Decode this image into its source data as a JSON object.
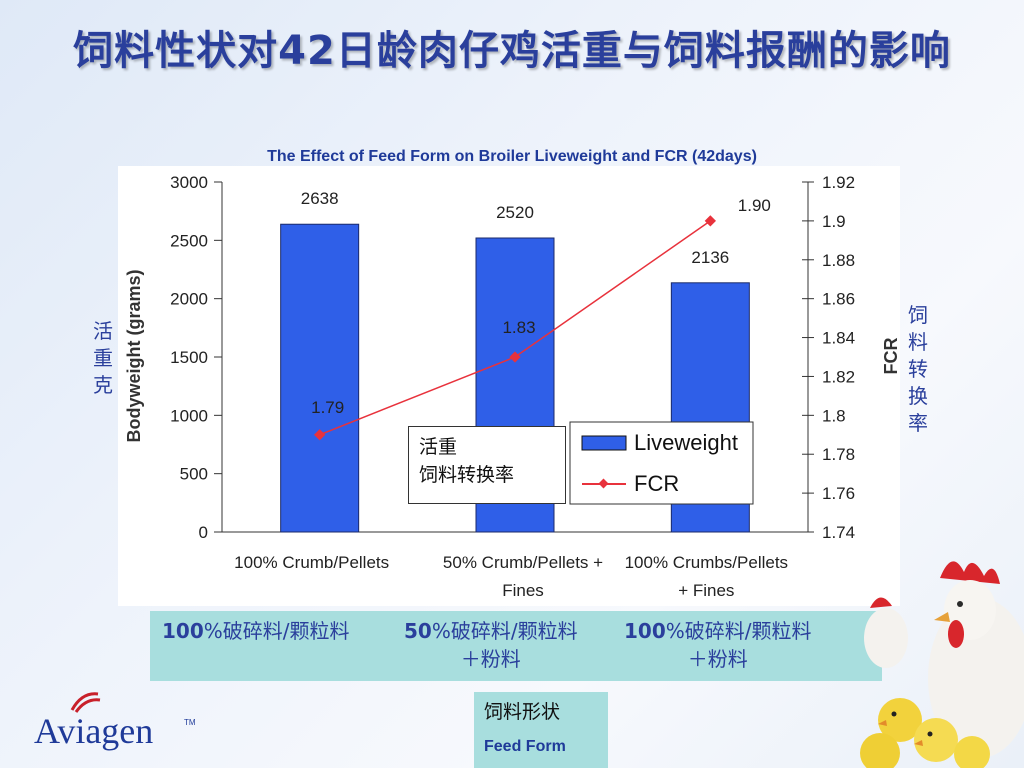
{
  "title_zh": "饲料性状对42日龄肉仔鸡活重与饲料报酬的影响",
  "title_en": "The Effect of Feed Form on Broiler Liveweight and FCR (42days)",
  "labels_zh": {
    "left_axis": "活重克",
    "right_axis": "饲料转换率",
    "legend_liveweight": "活重",
    "legend_fcr": "饲料转换率"
  },
  "categories_zh": [
    {
      "num": "100",
      "text": "%破碎料/颗粒料",
      "line2": ""
    },
    {
      "num": "50",
      "text": "%破碎料/颗粒料",
      "line2": "＋粉料"
    },
    {
      "num": "100",
      "text": "%破碎料/颗粒料",
      "line2": "＋粉料"
    }
  ],
  "feed_form": {
    "zh": "饲料形状",
    "en": "Feed Form"
  },
  "logo": {
    "text": "Aviagen",
    "tm": "TM"
  },
  "colors": {
    "bar": "#2f5fe8",
    "line": "#e8323c",
    "title": "#2a3f9c",
    "band": "#a8dede"
  },
  "chart_data": {
    "type": "bar",
    "categories": [
      [
        "100% Crumb/Pellets"
      ],
      [
        "50% Crumb/Pellets +",
        "Fines"
      ],
      [
        "100% Crumbs/Pellets",
        "+ Fines"
      ]
    ],
    "series": [
      {
        "name": "Liveweight",
        "type": "bar",
        "axis": "left",
        "values": [
          2638,
          2520,
          2136
        ],
        "labels": [
          "2638",
          "2520",
          "2136"
        ]
      },
      {
        "name": "FCR",
        "type": "line",
        "axis": "right",
        "values": [
          1.79,
          1.83,
          1.9
        ],
        "labels": [
          "1.79",
          "1.83",
          "1.90"
        ]
      }
    ],
    "ylabel": "Bodyweight (grams)",
    "ylabel_right": "FCR",
    "ylim": [
      0,
      3000
    ],
    "yticks": [
      "0",
      "500",
      "1000",
      "1500",
      "2000",
      "2500",
      "3000"
    ],
    "ylim_right": [
      1.74,
      1.92
    ],
    "yticks_right": [
      "1.74",
      "1.76",
      "1.78",
      "1.8",
      "1.82",
      "1.84",
      "1.86",
      "1.88",
      "1.9",
      "1.92"
    ],
    "legend": "bottom-right",
    "grid": false
  }
}
